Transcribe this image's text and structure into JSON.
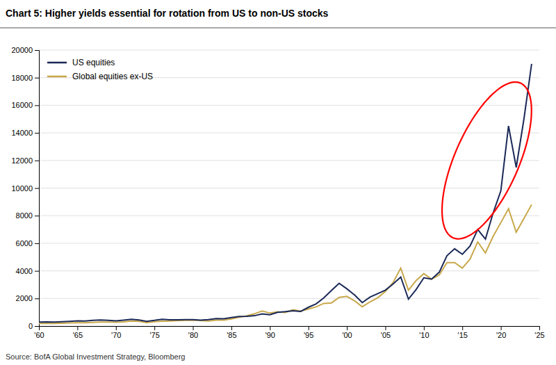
{
  "chart_data": {
    "type": "line",
    "title": "Chart 5: Higher yields essential for rotation from US to non-US stocks",
    "source": "Source:  BofA Global Investment Strategy, Bloomberg",
    "x": [
      1960,
      1961,
      1962,
      1963,
      1964,
      1965,
      1966,
      1967,
      1968,
      1969,
      1970,
      1971,
      1972,
      1973,
      1974,
      1975,
      1976,
      1977,
      1978,
      1979,
      1980,
      1981,
      1982,
      1983,
      1984,
      1985,
      1986,
      1987,
      1988,
      1989,
      1990,
      1991,
      1992,
      1993,
      1994,
      1995,
      1996,
      1997,
      1998,
      1999,
      2000,
      2001,
      2002,
      2003,
      2004,
      2005,
      2006,
      2007,
      2008,
      2009,
      2010,
      2011,
      2012,
      2013,
      2014,
      2015,
      2016,
      2017,
      2018,
      2019,
      2020,
      2021,
      2022,
      2023,
      2024
    ],
    "series": [
      {
        "name": "US equities",
        "color": "#1a2857",
        "values": [
          290,
          300,
          285,
          320,
          345,
          380,
          360,
          410,
          440,
          420,
          380,
          430,
          490,
          440,
          345,
          410,
          490,
          450,
          455,
          460,
          470,
          430,
          465,
          540,
          535,
          615,
          690,
          700,
          750,
          880,
          820,
          990,
          1040,
          1110,
          1060,
          1360,
          1610,
          2040,
          2580,
          3100,
          2700,
          2250,
          1700,
          2100,
          2350,
          2600,
          3050,
          3550,
          1950,
          2650,
          3500,
          3400,
          3900,
          5100,
          5600,
          5200,
          5800,
          7000,
          6300,
          8200,
          9800,
          14500,
          11500,
          15000,
          19000
        ]
      },
      {
        "name": "Global equities ex-US",
        "color": "#c8a84b",
        "values": [
          190,
          195,
          185,
          205,
          225,
          245,
          235,
          265,
          295,
          295,
          275,
          305,
          365,
          345,
          255,
          310,
          355,
          360,
          390,
          420,
          430,
          405,
          370,
          430,
          430,
          520,
          640,
          740,
          890,
          1090,
          940,
          1030,
          985,
          1185,
          1080,
          1230,
          1390,
          1640,
          1680,
          2080,
          2150,
          1830,
          1400,
          1750,
          2050,
          2500,
          3150,
          4200,
          2600,
          3300,
          3800,
          3400,
          3700,
          4600,
          4600,
          4200,
          4850,
          6100,
          5300,
          6500,
          7500,
          8500,
          6800,
          7800,
          8800
        ]
      }
    ],
    "xlim": [
      1960,
      2025
    ],
    "xticks": [
      {
        "value": 1960,
        "label": "'60"
      },
      {
        "value": 1965,
        "label": "'65"
      },
      {
        "value": 1970,
        "label": "'70"
      },
      {
        "value": 1975,
        "label": "'75"
      },
      {
        "value": 1980,
        "label": "'80"
      },
      {
        "value": 1985,
        "label": "'85"
      },
      {
        "value": 1990,
        "label": "'90"
      },
      {
        "value": 1995,
        "label": "'95"
      },
      {
        "value": 2000,
        "label": "'00"
      },
      {
        "value": 2005,
        "label": "'05"
      },
      {
        "value": 2010,
        "label": "'10"
      },
      {
        "value": 2015,
        "label": "'15"
      },
      {
        "value": 2020,
        "label": "'20"
      },
      {
        "value": 2025,
        "label": "'25"
      }
    ],
    "ylim": [
      0,
      20000
    ],
    "yticks": [
      0,
      2000,
      4000,
      6000,
      8000,
      10000,
      12000,
      14000,
      16000,
      18000,
      20000
    ],
    "grid": true,
    "legend": "upper left"
  }
}
